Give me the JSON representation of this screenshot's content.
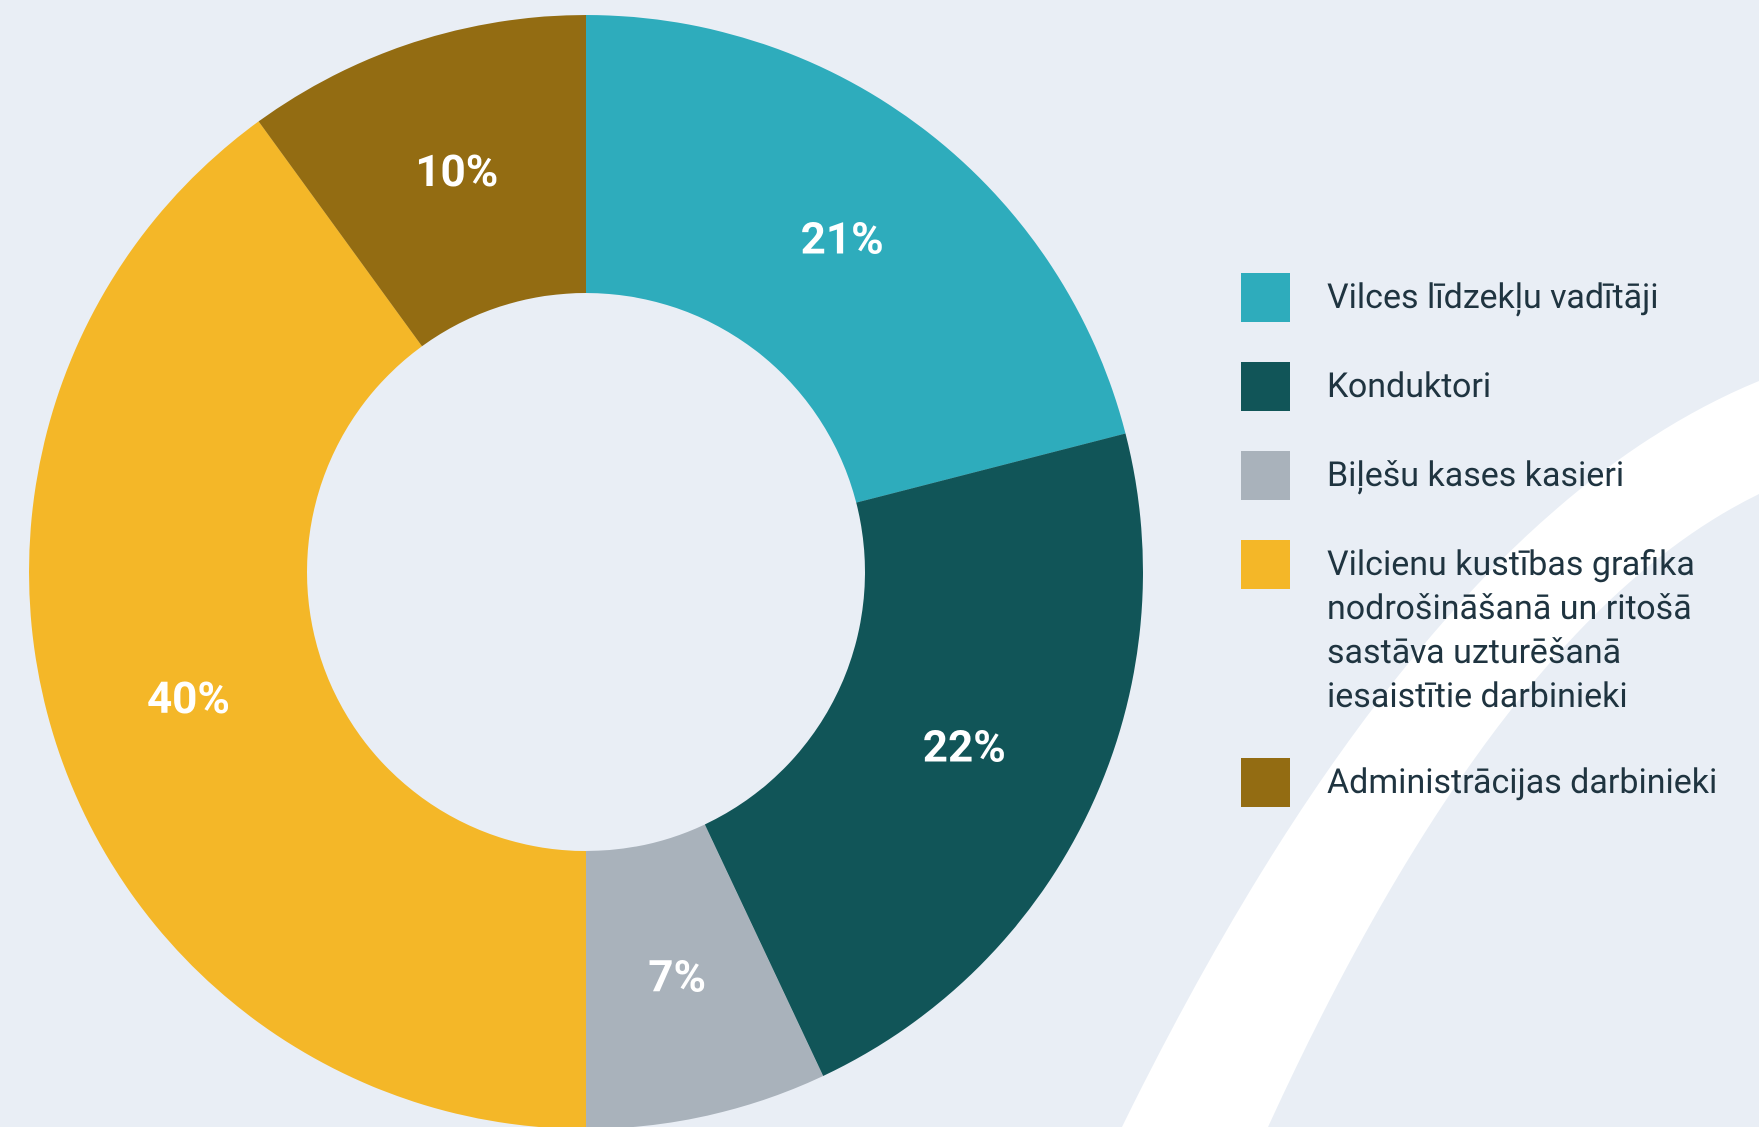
{
  "chart_data": {
    "type": "donut",
    "categories": [
      "Vilces līdzekļu vadītāji",
      "Konduktori",
      "Biļešu kases kasieri",
      "Vilcienu kustības grafika nodrošināšanā un ritošā sastāva uzturēšanā iesaistītie darbinieki",
      "Administrācijas darbinieki"
    ],
    "values": [
      21,
      22,
      7,
      40,
      10
    ],
    "value_labels": [
      "21%",
      "22%",
      "7%",
      "40%",
      "10%"
    ],
    "colors": [
      "#2eacbc",
      "#115558",
      "#a9b2bb",
      "#f4b728",
      "#936c12"
    ],
    "legend": "right"
  }
}
